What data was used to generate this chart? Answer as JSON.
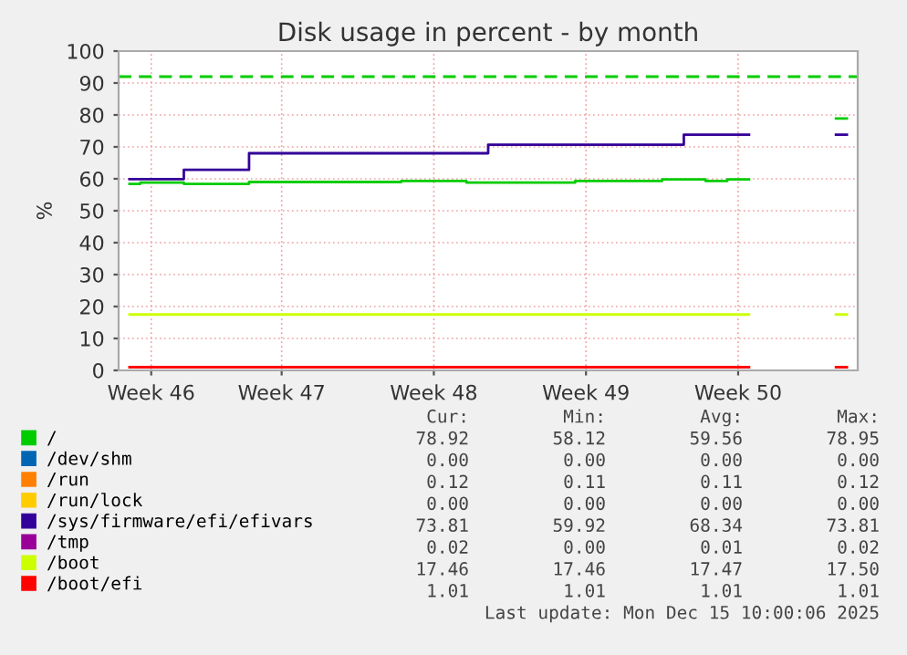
{
  "chart_data": {
    "type": "step",
    "title": "Disk usage in percent - by month",
    "ylabel": "%",
    "categories": [
      null,
      "Week 46",
      null,
      null,
      null,
      null,
      null,
      "Week 47",
      null,
      null,
      null,
      null,
      null,
      null,
      "Week 48",
      null,
      null,
      null,
      null,
      null,
      null,
      "Week 49",
      null,
      null,
      null,
      null,
      null,
      null,
      "Week 50",
      null,
      null,
      null,
      null,
      null
    ],
    "ylim": [
      0,
      100
    ],
    "yticks": [
      0,
      10,
      20,
      30,
      40,
      50,
      60,
      70,
      80,
      90,
      100
    ],
    "grid": true,
    "legend": "bottom",
    "ref_lines": [
      {
        "axis": "y",
        "value": 92,
        "color": "#00cc00",
        "line_style": "dashed"
      }
    ],
    "series": [
      {
        "name": "/",
        "color": "#00cc00",
        "values": [
          58.4,
          58.8,
          58.8,
          58.4,
          58.4,
          58.4,
          59.0,
          59.0,
          59.0,
          59.0,
          59.0,
          59.0,
          59.0,
          59.3,
          59.3,
          59.3,
          58.8,
          58.8,
          58.8,
          58.8,
          58.8,
          59.3,
          59.3,
          59.3,
          59.3,
          59.8,
          59.8,
          59.3,
          59.8,
          null,
          null,
          null,
          null,
          78.9
        ]
      },
      {
        "name": "/dev/shm",
        "color": "#0066b3",
        "values": [
          null,
          null,
          null,
          null,
          null,
          null,
          null,
          null,
          null,
          null,
          null,
          null,
          null,
          null,
          null,
          null,
          null,
          null,
          null,
          null,
          null,
          null,
          null,
          null,
          null,
          null,
          null,
          null,
          null,
          null,
          null,
          null,
          null,
          null
        ]
      },
      {
        "name": "/run",
        "color": "#ff8000",
        "values": [
          null,
          null,
          null,
          null,
          null,
          null,
          null,
          null,
          null,
          null,
          null,
          null,
          null,
          null,
          null,
          null,
          null,
          null,
          null,
          null,
          null,
          null,
          null,
          null,
          null,
          null,
          null,
          null,
          null,
          null,
          null,
          null,
          null,
          null
        ]
      },
      {
        "name": "/run/lock",
        "color": "#ffcc00",
        "values": [
          null,
          null,
          null,
          null,
          null,
          null,
          null,
          null,
          null,
          null,
          null,
          null,
          null,
          null,
          null,
          null,
          null,
          null,
          null,
          null,
          null,
          null,
          null,
          null,
          null,
          null,
          null,
          null,
          null,
          null,
          null,
          null,
          null,
          null
        ]
      },
      {
        "name": "/sys/firmware/efi/efivars",
        "color": "#330099",
        "values": [
          59.9,
          59.9,
          59.9,
          62.8,
          62.8,
          62.8,
          68.0,
          68.0,
          68.0,
          68.0,
          68.0,
          68.0,
          68.0,
          68.0,
          68.0,
          68.0,
          68.0,
          70.7,
          70.7,
          70.7,
          70.7,
          70.7,
          70.7,
          70.7,
          70.7,
          70.7,
          73.8,
          73.8,
          73.8,
          null,
          null,
          null,
          null,
          73.8
        ]
      },
      {
        "name": "/tmp",
        "color": "#990099",
        "values": [
          null,
          null,
          null,
          null,
          null,
          null,
          null,
          null,
          null,
          null,
          null,
          null,
          null,
          null,
          null,
          null,
          null,
          null,
          null,
          null,
          null,
          null,
          null,
          null,
          null,
          null,
          null,
          null,
          null,
          null,
          null,
          null,
          null,
          null
        ]
      },
      {
        "name": "/boot",
        "color": "#ccff00",
        "values": [
          17.5,
          17.5,
          17.5,
          17.5,
          17.5,
          17.5,
          17.5,
          17.5,
          17.5,
          17.5,
          17.5,
          17.5,
          17.5,
          17.5,
          17.5,
          17.5,
          17.5,
          17.5,
          17.5,
          17.5,
          17.5,
          17.5,
          17.5,
          17.5,
          17.5,
          17.5,
          17.5,
          17.5,
          17.5,
          null,
          null,
          null,
          null,
          17.5
        ]
      },
      {
        "name": "/boot/efi",
        "color": "#ff0000",
        "values": [
          1.0,
          1.0,
          1.0,
          1.0,
          1.0,
          1.0,
          1.0,
          1.0,
          1.0,
          1.0,
          1.0,
          1.0,
          1.0,
          1.0,
          1.0,
          1.0,
          1.0,
          1.0,
          1.0,
          1.0,
          1.0,
          1.0,
          1.0,
          1.0,
          1.0,
          1.0,
          1.0,
          1.0,
          1.0,
          null,
          null,
          null,
          null,
          1.0
        ]
      }
    ],
    "annotations": [
      "Cur:",
      "Min:",
      "Avg:",
      "Max:",
      "78.92",
      "58.12",
      "59.56",
      "78.95",
      "0.00",
      "0.00",
      "0.00",
      "0.00",
      "0.12",
      "0.11",
      "0.11",
      "0.12",
      "0.00",
      "0.00",
      "0.00",
      "0.00",
      "73.81",
      "59.92",
      "68.34",
      "73.81",
      "0.02",
      "0.00",
      "0.01",
      "0.02",
      "17.46",
      "17.46",
      "17.47",
      "17.50",
      "1.01",
      "1.01",
      "1.01",
      "1.01",
      "Last update: Mon Dec 15 10:00:06 2025"
    ]
  }
}
